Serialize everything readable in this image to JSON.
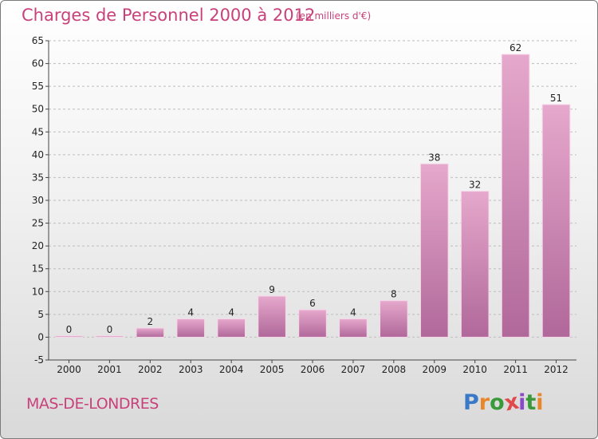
{
  "title": "Charges de Personnel 2000 à 2012",
  "subtitle": "(en milliers d'€)",
  "place": "MAS-DE-LONDRES",
  "logo": {
    "letters": [
      "P",
      "r",
      "o",
      "x",
      "i",
      "t",
      "i"
    ],
    "colors": [
      "#3a78c8",
      "#e8862a",
      "#3a9a3a",
      "#e04a4a",
      "#8a4ac8",
      "#3a9a3a",
      "#e8862a"
    ]
  },
  "colors": {
    "bar_top": "#e6a8cc",
    "bar_bottom": "#b0689a",
    "bar_edge": "#f6d6e8",
    "text_accent": "#c8417a",
    "grid": "#bdbdbd"
  },
  "chart_data": {
    "type": "bar",
    "categories": [
      "2000",
      "2001",
      "2002",
      "2003",
      "2004",
      "2005",
      "2006",
      "2007",
      "2008",
      "2009",
      "2010",
      "2011",
      "2012"
    ],
    "values": [
      0,
      0,
      2,
      4,
      4,
      9,
      6,
      4,
      8,
      38,
      32,
      62,
      51
    ],
    "title": "Charges de Personnel 2000 à 2012",
    "subtitle": "(en milliers d'€)",
    "xlabel": "",
    "ylabel": "",
    "ylim": [
      -5,
      65
    ],
    "yticks": [
      -5,
      0,
      5,
      10,
      15,
      20,
      25,
      30,
      35,
      40,
      45,
      50,
      55,
      60,
      65
    ],
    "grid": true,
    "legend": "none"
  }
}
